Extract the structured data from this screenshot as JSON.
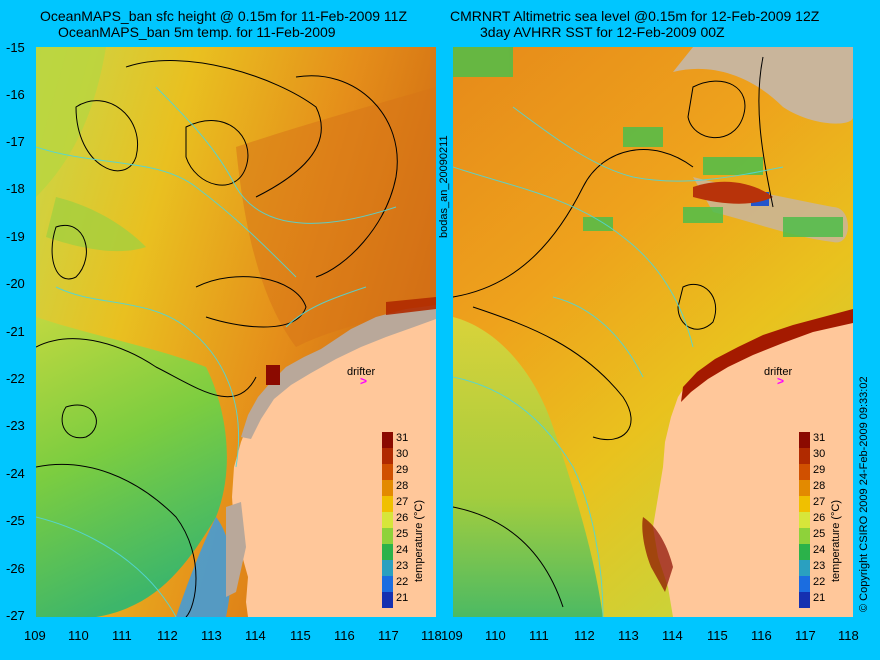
{
  "left_panel": {
    "title_line1": "OceanMAPS_ban sfc height @ 0.15m for 11-Feb-2009 11Z",
    "title_line2": "OceanMAPS_ban 5m temp. for 11-Feb-2009"
  },
  "right_panel": {
    "title_line1": "CMRNRT Altimetric sea level  @0.15m  for 12-Feb-2009 12Z",
    "title_line2": "3day AVHRR SST for 12-Feb-2009 00Z"
  },
  "y_ticks": [
    "-15",
    "-16",
    "-17",
    "-18",
    "-19",
    "-20",
    "-21",
    "-22",
    "-23",
    "-24",
    "-25",
    "-26",
    "-27"
  ],
  "x_ticks": [
    "109",
    "110",
    "111",
    "112",
    "113",
    "114",
    "115",
    "116",
    "117",
    "118"
  ],
  "colorbar": {
    "label": "temperature (°C)",
    "ticks": [
      "31",
      "30",
      "29",
      "28",
      "27",
      "26",
      "25",
      "24",
      "23",
      "22",
      "21"
    ],
    "colors": [
      "#8b0a00",
      "#b02a00",
      "#d05000",
      "#e38a00",
      "#f0c000",
      "#d7e63a",
      "#8ed23a",
      "#2bb24a",
      "#2aa0c0",
      "#1b6de0",
      "#1530b0"
    ]
  },
  "drifter": {
    "label": "drifter",
    "symbol": ">"
  },
  "side_text": {
    "middle": "bodas_an_20090211",
    "right": "© Copyright CSIRO 2009  24-Feb-2009 09:33:02"
  }
}
